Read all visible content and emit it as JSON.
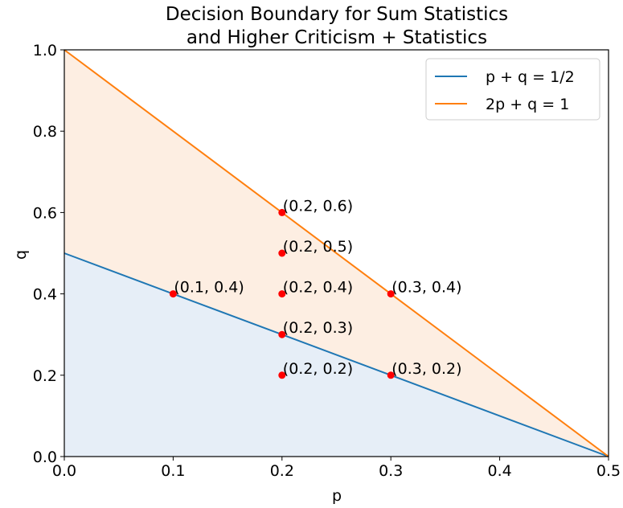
{
  "chart_data": {
    "type": "line",
    "title_lines": [
      "Decision Boundary for Sum Statistics",
      "and Higher Criticism + Statistics"
    ],
    "xlabel": "p",
    "ylabel": "q",
    "xlim": [
      0.0,
      0.5
    ],
    "ylim": [
      0.0,
      1.0
    ],
    "xticks": [
      {
        "value": 0.0,
        "label": "0.0"
      },
      {
        "value": 0.1,
        "label": "0.1"
      },
      {
        "value": 0.2,
        "label": "0.2"
      },
      {
        "value": 0.3,
        "label": "0.3"
      },
      {
        "value": 0.4,
        "label": "0.4"
      },
      {
        "value": 0.5,
        "label": "0.5"
      }
    ],
    "yticks": [
      {
        "value": 0.0,
        "label": "0.0"
      },
      {
        "value": 0.2,
        "label": "0.2"
      },
      {
        "value": 0.4,
        "label": "0.4"
      },
      {
        "value": 0.6,
        "label": "0.6"
      },
      {
        "value": 0.8,
        "label": "0.8"
      },
      {
        "value": 1.0,
        "label": "1.0"
      }
    ],
    "grid": false,
    "legend_position": "top-right",
    "series": [
      {
        "name": "p + q = 1/2",
        "color": "#1f77b4",
        "x": [
          0.0,
          0.5
        ],
        "y": [
          0.5,
          0.0
        ]
      },
      {
        "name": "2p + q = 1",
        "color": "#ff7f0e",
        "x": [
          0.0,
          0.5
        ],
        "y": [
          1.0,
          0.0
        ]
      }
    ],
    "fills": [
      {
        "between": "below p + q = 1/2",
        "color": "#e6eef7"
      },
      {
        "between": "p + q = 1/2 and 2p + q = 1",
        "color": "#fdeee2"
      }
    ],
    "points": {
      "color": "#ff0000",
      "items": [
        {
          "x": 0.1,
          "y": 0.4,
          "label": "(0.1, 0.4)"
        },
        {
          "x": 0.2,
          "y": 0.6,
          "label": "(0.2, 0.6)"
        },
        {
          "x": 0.2,
          "y": 0.5,
          "label": "(0.2, 0.5)"
        },
        {
          "x": 0.2,
          "y": 0.4,
          "label": "(0.2, 0.4)"
        },
        {
          "x": 0.2,
          "y": 0.3,
          "label": "(0.2, 0.3)"
        },
        {
          "x": 0.2,
          "y": 0.2,
          "label": "(0.2, 0.2)"
        },
        {
          "x": 0.3,
          "y": 0.4,
          "label": "(0.3, 0.4)"
        },
        {
          "x": 0.3,
          "y": 0.2,
          "label": "(0.3, 0.2)"
        }
      ]
    }
  }
}
